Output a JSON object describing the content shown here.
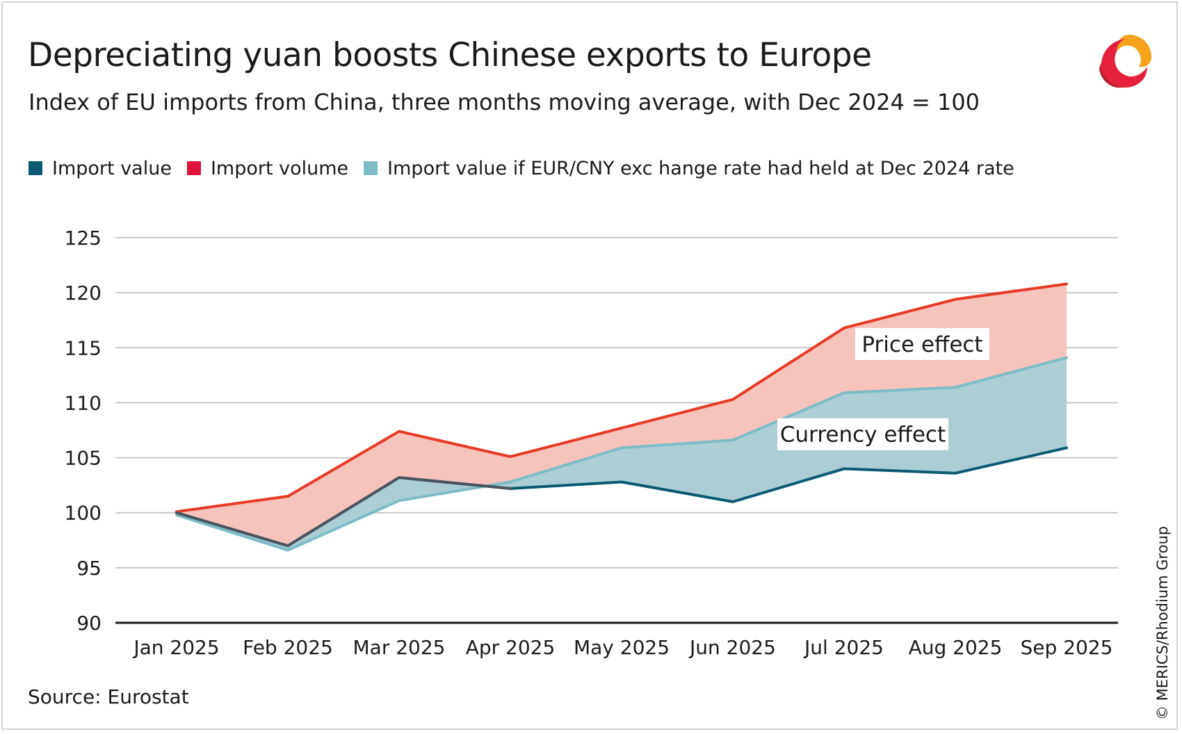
{
  "header": {
    "title": "Depreciating yuan boosts Chinese exports to Europe",
    "subtitle": "Index of EU imports from China, three months moving average, with Dec 2024 = 100"
  },
  "legend": [
    {
      "label": "Import value",
      "color": "#0b5a72"
    },
    {
      "label": "Import volume",
      "color": "#e0133f"
    },
    {
      "label": "Import value if EUR/CNY exc hange rate had held at Dec 2024 rate",
      "color": "#7dbcc7"
    }
  ],
  "footer": {
    "source": "Source: Eurostat",
    "credit": "© MERICS/Rhodium Group"
  },
  "logo": {
    "icon": "merics-logo-icon",
    "colors": [
      "#f7a21b",
      "#e5213d",
      "#b51e32"
    ]
  },
  "chart_data": {
    "type": "line",
    "categories": [
      "Jan 2025",
      "Feb 2025",
      "Mar 2025",
      "Apr 2025",
      "May 2025",
      "Jun 2025",
      "Jul 2025",
      "Aug 2025",
      "Sep 2025"
    ],
    "ylim": [
      90,
      125
    ],
    "yticks": [
      90,
      95,
      100,
      105,
      110,
      115,
      120,
      125
    ],
    "grid": true,
    "series": [
      {
        "name": "Import value",
        "color": "#0b5a72",
        "values": [
          100.0,
          97.0,
          103.2,
          102.2,
          102.8,
          101.0,
          104.0,
          103.6,
          105.9
        ]
      },
      {
        "name": "Import volume",
        "color": "#e63b26",
        "values": [
          100.1,
          101.5,
          107.4,
          105.1,
          107.7,
          110.3,
          116.8,
          119.4,
          120.8
        ]
      },
      {
        "name": "Import value if EUR/CNY exc hange rate had held at Dec 2024 rate",
        "color": "#7dbcc7",
        "values": [
          99.8,
          96.6,
          101.1,
          102.8,
          105.9,
          106.6,
          110.9,
          111.4,
          114.1
        ]
      }
    ],
    "areas": [
      {
        "between": [
          "Import volume",
          "Import value if EUR/CNY exc hange rate had held at Dec 2024 rate"
        ],
        "color": "#f6c3bd"
      },
      {
        "between": [
          "Import value if EUR/CNY exc hange rate had held at Dec 2024 rate",
          "Import value"
        ],
        "color": "#adcdd4"
      }
    ],
    "annotations": [
      {
        "text": "Price effect",
        "x": "Jul 2025",
        "y": 115.4
      },
      {
        "text": "Currency effect",
        "x": "Jun 2025",
        "y": 107.2
      }
    ],
    "overlap_line_color": "#4b5560"
  }
}
